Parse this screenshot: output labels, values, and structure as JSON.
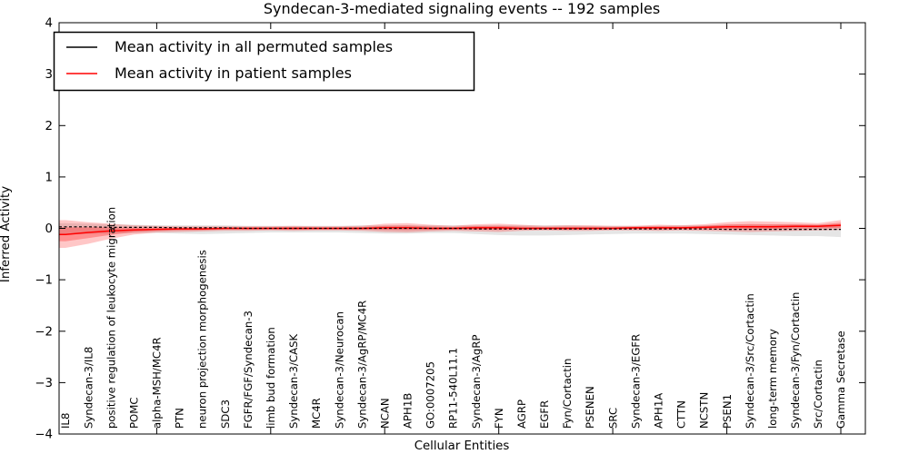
{
  "chart_data": {
    "type": "line",
    "title": "Syndecan-3-mediated signaling events -- 192 samples",
    "xlabel": "Cellular Entities",
    "ylabel": "Inferred Activity",
    "ylim": [
      -4,
      4
    ],
    "yticks": [
      "4",
      "3",
      "2",
      "1",
      "0",
      "−1",
      "−2",
      "−3",
      "−4"
    ],
    "ytick_values": [
      4,
      3,
      2,
      1,
      0,
      -1,
      -2,
      -3,
      -4
    ],
    "xtick_every": 5,
    "grid": false,
    "legend_position": "upper left",
    "categories": [
      "IL8",
      "Syndecan-3/IL8",
      "positive regulation of leukocyte migration",
      "POMC",
      "alpha-MSH/MC4R",
      "PTN",
      "neuron projection morphogenesis",
      "SDC3",
      "FGFR/FGF/Syndecan-3",
      "limb bud formation",
      "Syndecan-3/CASK",
      "MC4R",
      "Syndecan-3/Neurocan",
      "Syndecan-3/AgRP/MC4R",
      "NCAN",
      "APH1B",
      "GO:0007205",
      "RP11-540L11.1",
      "Syndecan-3/AgRP",
      "FYN",
      "AGRP",
      "EGFR",
      "Fyn/Cortactin",
      "PSENEN",
      "SRC",
      "Syndecan-3/EGFR",
      "APH1A",
      "CTTN",
      "NCSTN",
      "PSEN1",
      "Syndecan-3/Src/Cortactin",
      "long-term memory",
      "Syndecan-3/Fyn/Cortactin",
      "Src/Cortactin",
      "Gamma Secretase"
    ],
    "series": [
      {
        "name": "Mean activity in all permuted samples",
        "color": "#000000",
        "line_style": "dashed",
        "band_color": "#000000",
        "band_alpha": 0.1,
        "values": [
          0.03,
          0.03,
          0.02,
          0.02,
          0.02,
          0.01,
          0.01,
          0.01,
          0.0,
          0.0,
          0.0,
          0.0,
          0.0,
          0.0,
          0.0,
          0.0,
          0.0,
          0.0,
          -0.01,
          -0.01,
          -0.01,
          -0.01,
          -0.01,
          -0.01,
          -0.01,
          -0.01,
          -0.01,
          -0.01,
          -0.01,
          -0.02,
          -0.02,
          -0.02,
          -0.02,
          -0.02,
          -0.02
        ],
        "band_hi": [
          0.1,
          0.09,
          0.08,
          0.07,
          0.06,
          0.06,
          0.06,
          0.06,
          0.05,
          0.05,
          0.05,
          0.05,
          0.05,
          0.06,
          0.06,
          0.06,
          0.06,
          0.06,
          0.06,
          0.06,
          0.06,
          0.06,
          0.06,
          0.05,
          0.05,
          0.05,
          0.05,
          0.06,
          0.06,
          0.07,
          0.07,
          0.07,
          0.07,
          0.07,
          0.08
        ],
        "band_lo": [
          -0.12,
          -0.11,
          -0.1,
          -0.09,
          -0.09,
          -0.1,
          -0.11,
          -0.1,
          -0.09,
          -0.08,
          -0.08,
          -0.08,
          -0.08,
          -0.09,
          -0.1,
          -0.1,
          -0.09,
          -0.09,
          -0.11,
          -0.13,
          -0.14,
          -0.14,
          -0.13,
          -0.12,
          -0.11,
          -0.1,
          -0.1,
          -0.1,
          -0.11,
          -0.12,
          -0.13,
          -0.14,
          -0.15,
          -0.15,
          -0.17
        ]
      },
      {
        "name": "Mean activity in patient samples",
        "color": "#ff0000",
        "line_style": "solid",
        "band_color": "#ff0000",
        "band_alpha": 0.22,
        "values": [
          -0.12,
          -0.08,
          -0.05,
          -0.03,
          -0.02,
          -0.01,
          -0.01,
          0.0,
          0.0,
          0.0,
          0.0,
          0.0,
          0.0,
          0.0,
          0.01,
          0.01,
          0.0,
          0.0,
          0.01,
          0.01,
          0.0,
          0.0,
          0.0,
          0.0,
          0.0,
          0.01,
          0.01,
          0.01,
          0.02,
          0.03,
          0.03,
          0.03,
          0.04,
          0.04,
          0.06
        ],
        "band_hi": [
          0.16,
          0.12,
          0.09,
          0.06,
          0.05,
          0.04,
          0.04,
          0.04,
          0.04,
          0.04,
          0.05,
          0.04,
          0.04,
          0.05,
          0.09,
          0.1,
          0.07,
          0.05,
          0.08,
          0.09,
          0.07,
          0.05,
          0.06,
          0.06,
          0.05,
          0.05,
          0.07,
          0.06,
          0.08,
          0.12,
          0.14,
          0.13,
          0.12,
          0.1,
          0.16
        ],
        "band_lo": [
          -0.38,
          -0.3,
          -0.2,
          -0.12,
          -0.08,
          -0.07,
          -0.06,
          -0.05,
          -0.05,
          -0.04,
          -0.05,
          -0.04,
          -0.04,
          -0.05,
          -0.07,
          -0.08,
          -0.06,
          -0.05,
          -0.06,
          -0.07,
          -0.05,
          -0.04,
          -0.05,
          -0.05,
          -0.04,
          -0.04,
          -0.05,
          -0.04,
          -0.05,
          -0.06,
          -0.07,
          -0.06,
          -0.05,
          -0.04,
          -0.03
        ]
      }
    ]
  }
}
